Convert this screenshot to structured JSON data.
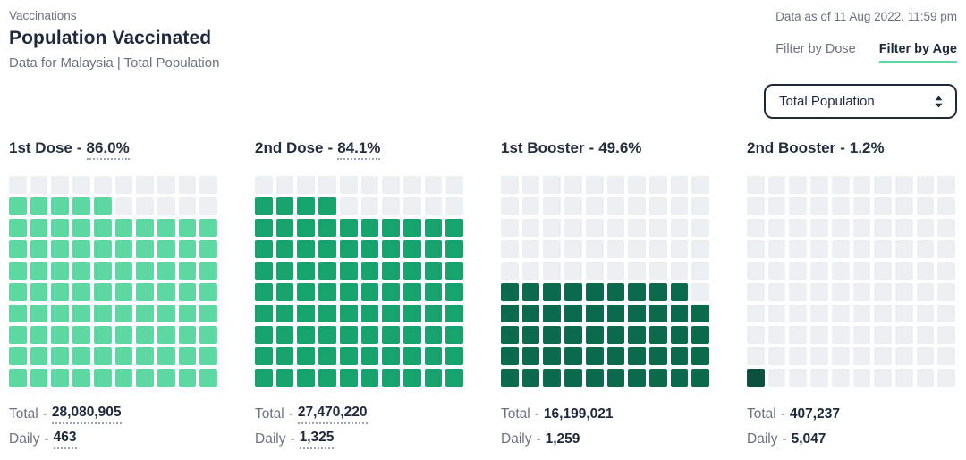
{
  "header": {
    "eyebrow": "Vaccinations",
    "title": "Population Vaccinated",
    "subtitle": "Data for Malaysia | Total Population",
    "data_as_of": "Data as of 11 Aug 2022, 11:59 pm",
    "tabs": [
      {
        "label": "Filter by Dose",
        "active": false
      },
      {
        "label": "Filter by Age",
        "active": true
      }
    ],
    "age_dropdown": {
      "value": "Total Population",
      "icon": "updown-arrows-icon"
    }
  },
  "labels": {
    "total": "Total",
    "daily": "Daily",
    "separator": "-"
  },
  "colors": {
    "accent_tab_underline": "#5ED8A2",
    "text_dark": "#1E293B",
    "text_gray": "#6B7280",
    "waffle_empty": "#EDF0F2"
  },
  "chart_data": {
    "type": "waffle",
    "title": "Population Vaccinated",
    "grid": {
      "rows": 10,
      "cols": 10,
      "square_unit_percent": 1,
      "fill_origin": "bottom-left"
    },
    "charts": [
      {
        "title": "1st Dose",
        "percent": "86.0%",
        "percent_value": 86.0,
        "filled_squares": 85,
        "color": "#5ED8A2",
        "total": "28,080,905",
        "total_value": 28080905,
        "daily": "463",
        "daily_value": 463,
        "tooltip_hint": true
      },
      {
        "title": "2nd Dose",
        "percent": "84.1%",
        "percent_value": 84.1,
        "filled_squares": 84,
        "color": "#17A36E",
        "total": "27,470,220",
        "total_value": 27470220,
        "daily": "1,325",
        "daily_value": 1325,
        "tooltip_hint": true
      },
      {
        "title": "1st Booster",
        "percent": "49.6%",
        "percent_value": 49.6,
        "filled_squares": 49,
        "color": "#0C6B4C",
        "total": "16,199,021",
        "total_value": 16199021,
        "daily": "1,259",
        "daily_value": 1259,
        "tooltip_hint": false
      },
      {
        "title": "2nd Booster",
        "percent": "1.2%",
        "percent_value": 1.2,
        "filled_squares": 1,
        "color": "#0A5140",
        "total": "407,237",
        "total_value": 407237,
        "daily": "5,047",
        "daily_value": 5047,
        "tooltip_hint": false
      }
    ]
  }
}
